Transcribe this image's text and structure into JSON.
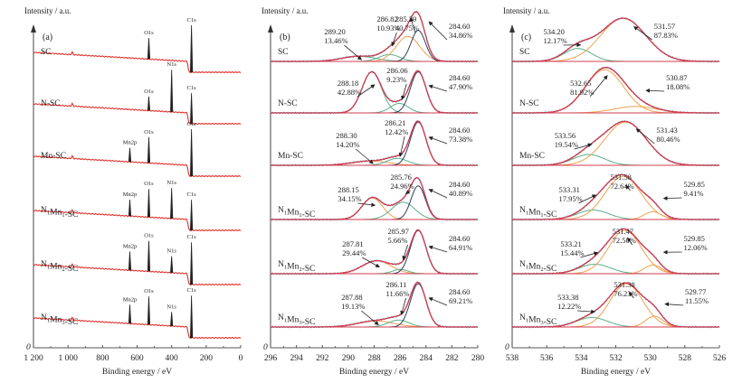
{
  "colors": {
    "survey": "#e0302a",
    "envelope": "#d23c50",
    "raw": "#3a6e8c",
    "c1": "#2b3e5c",
    "c2": "#f0a050",
    "c3": "#5cae8a",
    "axis": "#555555",
    "peak": "#222222"
  },
  "chart_data": [
    {
      "type": "line",
      "panel": "(a)",
      "ylabel": "Intensity / a.u.",
      "xlabel": "Binding energy / eV",
      "origin_label": "0",
      "xlim": [
        1200,
        0
      ],
      "x_ticks": [
        1200,
        1000,
        800,
        600,
        400,
        200,
        0
      ],
      "x_tick_labels": [
        "1 200",
        "1 000",
        "800",
        "600",
        "400",
        "200",
        "0"
      ],
      "samples": [
        {
          "name": "SC",
          "name_parts": [
            [
              "SC",
              ""
            ]
          ],
          "peaks": [
            {
              "label": "O1s",
              "x": 532,
              "h": 0.45
            },
            {
              "label": "C1s",
              "x": 285,
              "h": 1.0
            }
          ]
        },
        {
          "name": "N-SC",
          "name_parts": [
            [
              "N-SC",
              ""
            ]
          ],
          "peaks": [
            {
              "label": "O1s",
              "x": 532,
              "h": 0.3
            },
            {
              "label": "N1s",
              "x": 400,
              "h": 0.9
            },
            {
              "label": "C1s",
              "x": 285,
              "h": 0.65
            }
          ]
        },
        {
          "name": "Mn-SC",
          "name_parts": [
            [
              "Mn-SC",
              ""
            ]
          ],
          "peaks": [
            {
              "label": "Mn2p",
              "x": 642,
              "h": 0.3
            },
            {
              "label": "O1s",
              "x": 532,
              "h": 0.55
            },
            {
              "label": "C1s",
              "x": 285,
              "h": 1.0
            }
          ]
        },
        {
          "name": "N1Mn1-SC",
          "name_parts": [
            [
              "N",
              "1"
            ],
            [
              "Mn",
              "1"
            ],
            [
              "-SC",
              ""
            ]
          ],
          "peaks": [
            {
              "label": "Mn2p",
              "x": 642,
              "h": 0.35
            },
            {
              "label": "O1s",
              "x": 532,
              "h": 0.6
            },
            {
              "label": "N1s",
              "x": 400,
              "h": 0.65
            },
            {
              "label": "C1s",
              "x": 285,
              "h": 0.65
            }
          ]
        },
        {
          "name": "N1Mn2-SC",
          "name_parts": [
            [
              "N",
              "1"
            ],
            [
              "Mn",
              "2"
            ],
            [
              "-SC",
              ""
            ]
          ],
          "peaks": [
            {
              "label": "Mn2p",
              "x": 642,
              "h": 0.4
            },
            {
              "label": "O1s",
              "x": 532,
              "h": 0.65
            },
            {
              "label": "N1s",
              "x": 400,
              "h": 0.35
            },
            {
              "label": "C1s",
              "x": 285,
              "h": 0.9
            }
          ]
        },
        {
          "name": "N1Mn3-SC",
          "name_parts": [
            [
              "N",
              "1"
            ],
            [
              "Mn",
              "3"
            ],
            [
              "-SC",
              ""
            ]
          ],
          "peaks": [
            {
              "label": "Mn2p",
              "x": 642,
              "h": 0.4
            },
            {
              "label": "O1s",
              "x": 532,
              "h": 0.6
            },
            {
              "label": "N1s",
              "x": 400,
              "h": 0.3
            },
            {
              "label": "C1s",
              "x": 285,
              "h": 0.9
            }
          ]
        }
      ]
    },
    {
      "type": "line",
      "panel": "(b)",
      "ylabel": "Intensity / a.u.",
      "xlabel": "Binding energy / eV",
      "origin_label": "0",
      "xlim": [
        296,
        280
      ],
      "x_ticks": [
        296,
        294,
        292,
        290,
        288,
        286,
        284,
        282,
        280
      ],
      "x_tick_labels": [
        "296",
        "294",
        "292",
        "290",
        "288",
        "286",
        "284",
        "282",
        "280"
      ],
      "samples": [
        {
          "name": "SC",
          "name_parts": [
            [
              "SC",
              ""
            ]
          ],
          "components": [
            {
              "center": 289.2,
              "percent": 13.46,
              "label_pos": "289.20",
              "label_pct": "13.46%",
              "color": "c3",
              "h": 0.12,
              "w": 1.3
            },
            {
              "center": 286.82,
              "percent": 10.93,
              "label_pos": "286.82",
              "label_pct": "10.93%",
              "color": "c3",
              "h": 0.16,
              "w": 0.8
            },
            {
              "center": 285.39,
              "percent": 40.75,
              "label_pos": "285.39",
              "label_pct": "40.75%",
              "color": "c2",
              "h": 0.58,
              "w": 0.9
            },
            {
              "center": 284.6,
              "percent": 34.86,
              "label_pos": "284.60",
              "label_pct": "34.86%",
              "color": "c1",
              "h": 0.72,
              "w": 0.55
            }
          ]
        },
        {
          "name": "N-SC",
          "name_parts": [
            [
              "N-SC",
              ""
            ]
          ],
          "components": [
            {
              "center": 288.18,
              "percent": 42.88,
              "label_pos": "288.18",
              "label_pct": "42.88%",
              "color": "c3",
              "h": 0.95,
              "w": 0.75
            },
            {
              "center": 286.06,
              "percent": 9.23,
              "label_pos": "286.06",
              "label_pct": "9.23%",
              "color": "c3",
              "h": 0.22,
              "w": 0.7
            },
            {
              "center": 284.6,
              "percent": 47.9,
              "label_pos": "284.60",
              "label_pct": "47.90%",
              "color": "c1",
              "h": 0.95,
              "w": 0.6
            }
          ]
        },
        {
          "name": "Mn-SC",
          "name_parts": [
            [
              "Mn-SC",
              ""
            ]
          ],
          "components": [
            {
              "center": 288.3,
              "percent": 14.2,
              "label_pos": "288.30",
              "label_pct": "14.20%",
              "color": "c2",
              "h": 0.1,
              "w": 1.4
            },
            {
              "center": 286.21,
              "percent": 12.42,
              "label_pos": "286.21",
              "label_pct": "12.42%",
              "color": "c3",
              "h": 0.16,
              "w": 0.8
            },
            {
              "center": 284.6,
              "percent": 73.38,
              "label_pos": "284.60",
              "label_pct": "73.38%",
              "color": "c1",
              "h": 1.0,
              "w": 0.6
            }
          ]
        },
        {
          "name": "N1Mn1-SC",
          "name_parts": [
            [
              "N",
              "1"
            ],
            [
              "Mn",
              "1"
            ],
            [
              "-SC",
              ""
            ]
          ],
          "components": [
            {
              "center": 288.15,
              "percent": 34.15,
              "label_pos": "288.15",
              "label_pct": "34.15%",
              "color": "c2",
              "h": 0.5,
              "w": 0.8
            },
            {
              "center": 285.76,
              "percent": 24.96,
              "label_pos": "285.76",
              "label_pct": "24.96%",
              "color": "c3",
              "h": 0.4,
              "w": 0.9
            },
            {
              "center": 284.6,
              "percent": 40.89,
              "label_pos": "284.60",
              "label_pct": "40.89%",
              "color": "c1",
              "h": 0.78,
              "w": 0.55
            }
          ]
        },
        {
          "name": "N1Mn2-SC",
          "name_parts": [
            [
              "N",
              "1"
            ],
            [
              "Mn",
              "2"
            ],
            [
              "-SC",
              ""
            ]
          ],
          "components": [
            {
              "center": 287.81,
              "percent": 29.44,
              "label_pos": "287.81",
              "label_pct": "29.44%",
              "color": "c2",
              "h": 0.3,
              "w": 1.1
            },
            {
              "center": 285.97,
              "percent": 5.66,
              "label_pos": "285.97",
              "label_pct": "5.66%",
              "color": "c3",
              "h": 0.1,
              "w": 0.6
            },
            {
              "center": 284.6,
              "percent": 64.91,
              "label_pos": "284.60",
              "label_pct": "64.91%",
              "color": "c1",
              "h": 1.0,
              "w": 0.6
            }
          ]
        },
        {
          "name": "N1Mn3-SC",
          "name_parts": [
            [
              "N",
              "1"
            ],
            [
              "Mn",
              "3"
            ],
            [
              "-SC",
              ""
            ]
          ],
          "components": [
            {
              "center": 287.88,
              "percent": 19.13,
              "label_pos": "287.88",
              "label_pct": "19.13%",
              "color": "c2",
              "h": 0.14,
              "w": 1.4
            },
            {
              "center": 286.11,
              "percent": 11.66,
              "label_pos": "286.11",
              "label_pct": "11.66%",
              "color": "c3",
              "h": 0.16,
              "w": 0.8
            },
            {
              "center": 284.6,
              "percent": 69.21,
              "label_pos": "284.60",
              "label_pct": "69.21%",
              "color": "c1",
              "h": 1.0,
              "w": 0.6
            }
          ]
        }
      ]
    },
    {
      "type": "line",
      "panel": "(c)",
      "ylabel": "Intensity / a.u.",
      "xlabel": "Binding energy / eV",
      "origin_label": "0",
      "xlim": [
        538,
        526
      ],
      "x_ticks": [
        538,
        536,
        534,
        532,
        530,
        528,
        526
      ],
      "x_tick_labels": [
        "538",
        "536",
        "534",
        "532",
        "530",
        "528",
        "526"
      ],
      "samples": [
        {
          "name": "SC",
          "name_parts": [
            [
              "SC",
              ""
            ]
          ],
          "components": [
            {
              "center": 534.2,
              "percent": 12.17,
              "label_pos": "534.20",
              "label_pct": "12.17%",
              "color": "c3",
              "h": 0.3,
              "w": 0.8
            },
            {
              "center": 531.57,
              "percent": 87.83,
              "label_pos": "531.57",
              "label_pct": "87.83%",
              "color": "c2",
              "h": 1.0,
              "w": 1.3
            }
          ]
        },
        {
          "name": "N-SC",
          "name_parts": [
            [
              "N-SC",
              ""
            ]
          ],
          "components": [
            {
              "center": 532.65,
              "percent": 81.92,
              "label_pos": "532.65",
              "label_pct": "81.92%",
              "color": "c2",
              "h": 1.0,
              "w": 1.1
            },
            {
              "center": 530.87,
              "percent": 18.08,
              "label_pos": "530.87",
              "label_pct": "18.08%",
              "color": "c2",
              "h": 0.15,
              "w": 1.2
            }
          ]
        },
        {
          "name": "Mn-SC",
          "name_parts": [
            [
              "Mn-SC",
              ""
            ]
          ],
          "components": [
            {
              "center": 533.56,
              "percent": 19.54,
              "label_pos": "533.56",
              "label_pct": "19.54%",
              "color": "c3",
              "h": 0.25,
              "w": 0.9
            },
            {
              "center": 531.43,
              "percent": 80.46,
              "label_pos": "531.43",
              "label_pct": "80.46%",
              "color": "c2",
              "h": 1.0,
              "w": 1.2
            }
          ]
        },
        {
          "name": "N1Mn1-SC",
          "name_parts": [
            [
              "N",
              "1"
            ],
            [
              "Mn",
              "1"
            ],
            [
              "-SC",
              ""
            ]
          ],
          "components": [
            {
              "center": 533.31,
              "percent": 17.95,
              "label_pos": "533.31",
              "label_pct": "17.95%",
              "color": "c3",
              "h": 0.22,
              "w": 0.9
            },
            {
              "center": 531.58,
              "percent": 72.64,
              "label_pos": "531.58",
              "label_pct": "72.64%",
              "color": "c2",
              "h": 1.0,
              "w": 1.05
            },
            {
              "center": 529.85,
              "percent": 9.41,
              "label_pos": "529.85",
              "label_pct": "9.41%",
              "color": "c2",
              "h": 0.18,
              "w": 0.5
            }
          ]
        },
        {
          "name": "N1Mn2-SC",
          "name_parts": [
            [
              "N",
              "1"
            ],
            [
              "Mn",
              "2"
            ],
            [
              "-SC",
              ""
            ]
          ],
          "components": [
            {
              "center": 533.21,
              "percent": 15.44,
              "label_pos": "533.21",
              "label_pct": "15.44%",
              "color": "c3",
              "h": 0.22,
              "w": 0.9
            },
            {
              "center": 531.47,
              "percent": 72.5,
              "label_pos": "531.47",
              "label_pct": "72.50%",
              "color": "c2",
              "h": 1.0,
              "w": 0.95
            },
            {
              "center": 529.85,
              "percent": 12.06,
              "label_pos": "529.85",
              "label_pct": "12.06%",
              "color": "c2",
              "h": 0.2,
              "w": 0.5
            }
          ]
        },
        {
          "name": "N1Mn3-SC",
          "name_parts": [
            [
              "N",
              "1"
            ],
            [
              "Mn",
              "3"
            ],
            [
              "-SC",
              ""
            ]
          ],
          "components": [
            {
              "center": 533.38,
              "percent": 12.22,
              "label_pos": "533.38",
              "label_pct": "12.22%",
              "color": "c3",
              "h": 0.22,
              "w": 0.9
            },
            {
              "center": 531.38,
              "percent": 76.23,
              "label_pos": "531.38",
              "label_pct": "76.23%",
              "color": "c2",
              "h": 1.0,
              "w": 0.95
            },
            {
              "center": 529.77,
              "percent": 11.55,
              "label_pos": "529.77",
              "label_pct": "11.55%",
              "color": "c2",
              "h": 0.25,
              "w": 0.5
            }
          ]
        }
      ]
    }
  ]
}
